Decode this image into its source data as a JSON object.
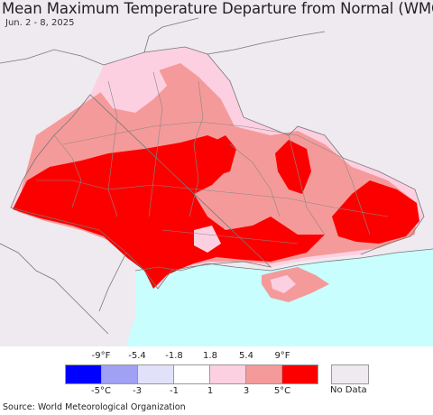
{
  "title": "Mean Maximum Temperature Departure from Normal (WMO)",
  "date": "Jun. 2 - 8, 2025",
  "colors": {
    "background_land": "#efeaef",
    "sea": "#c8fefd",
    "border": "#777777"
  },
  "legend": {
    "fahrenheit_ticks": [
      "-9°F",
      "-5.4",
      "-1.8",
      "1.8",
      "5.4",
      "9°F"
    ],
    "celsius_ticks": [
      "-5°C",
      "-3",
      "-1",
      "1",
      "3",
      "5°C"
    ],
    "bins": [
      {
        "color": "#0000ff"
      },
      {
        "color": "#a0a0f5"
      },
      {
        "color": "#e1e1fa"
      },
      {
        "color": "#ffffff"
      },
      {
        "color": "#fdd0e1"
      },
      {
        "color": "#f59a9a"
      },
      {
        "color": "#fc0000"
      }
    ],
    "nodata": {
      "label": "No Data",
      "color": "#efeaef"
    }
  },
  "source": "Source: World Meteorological Organization"
}
